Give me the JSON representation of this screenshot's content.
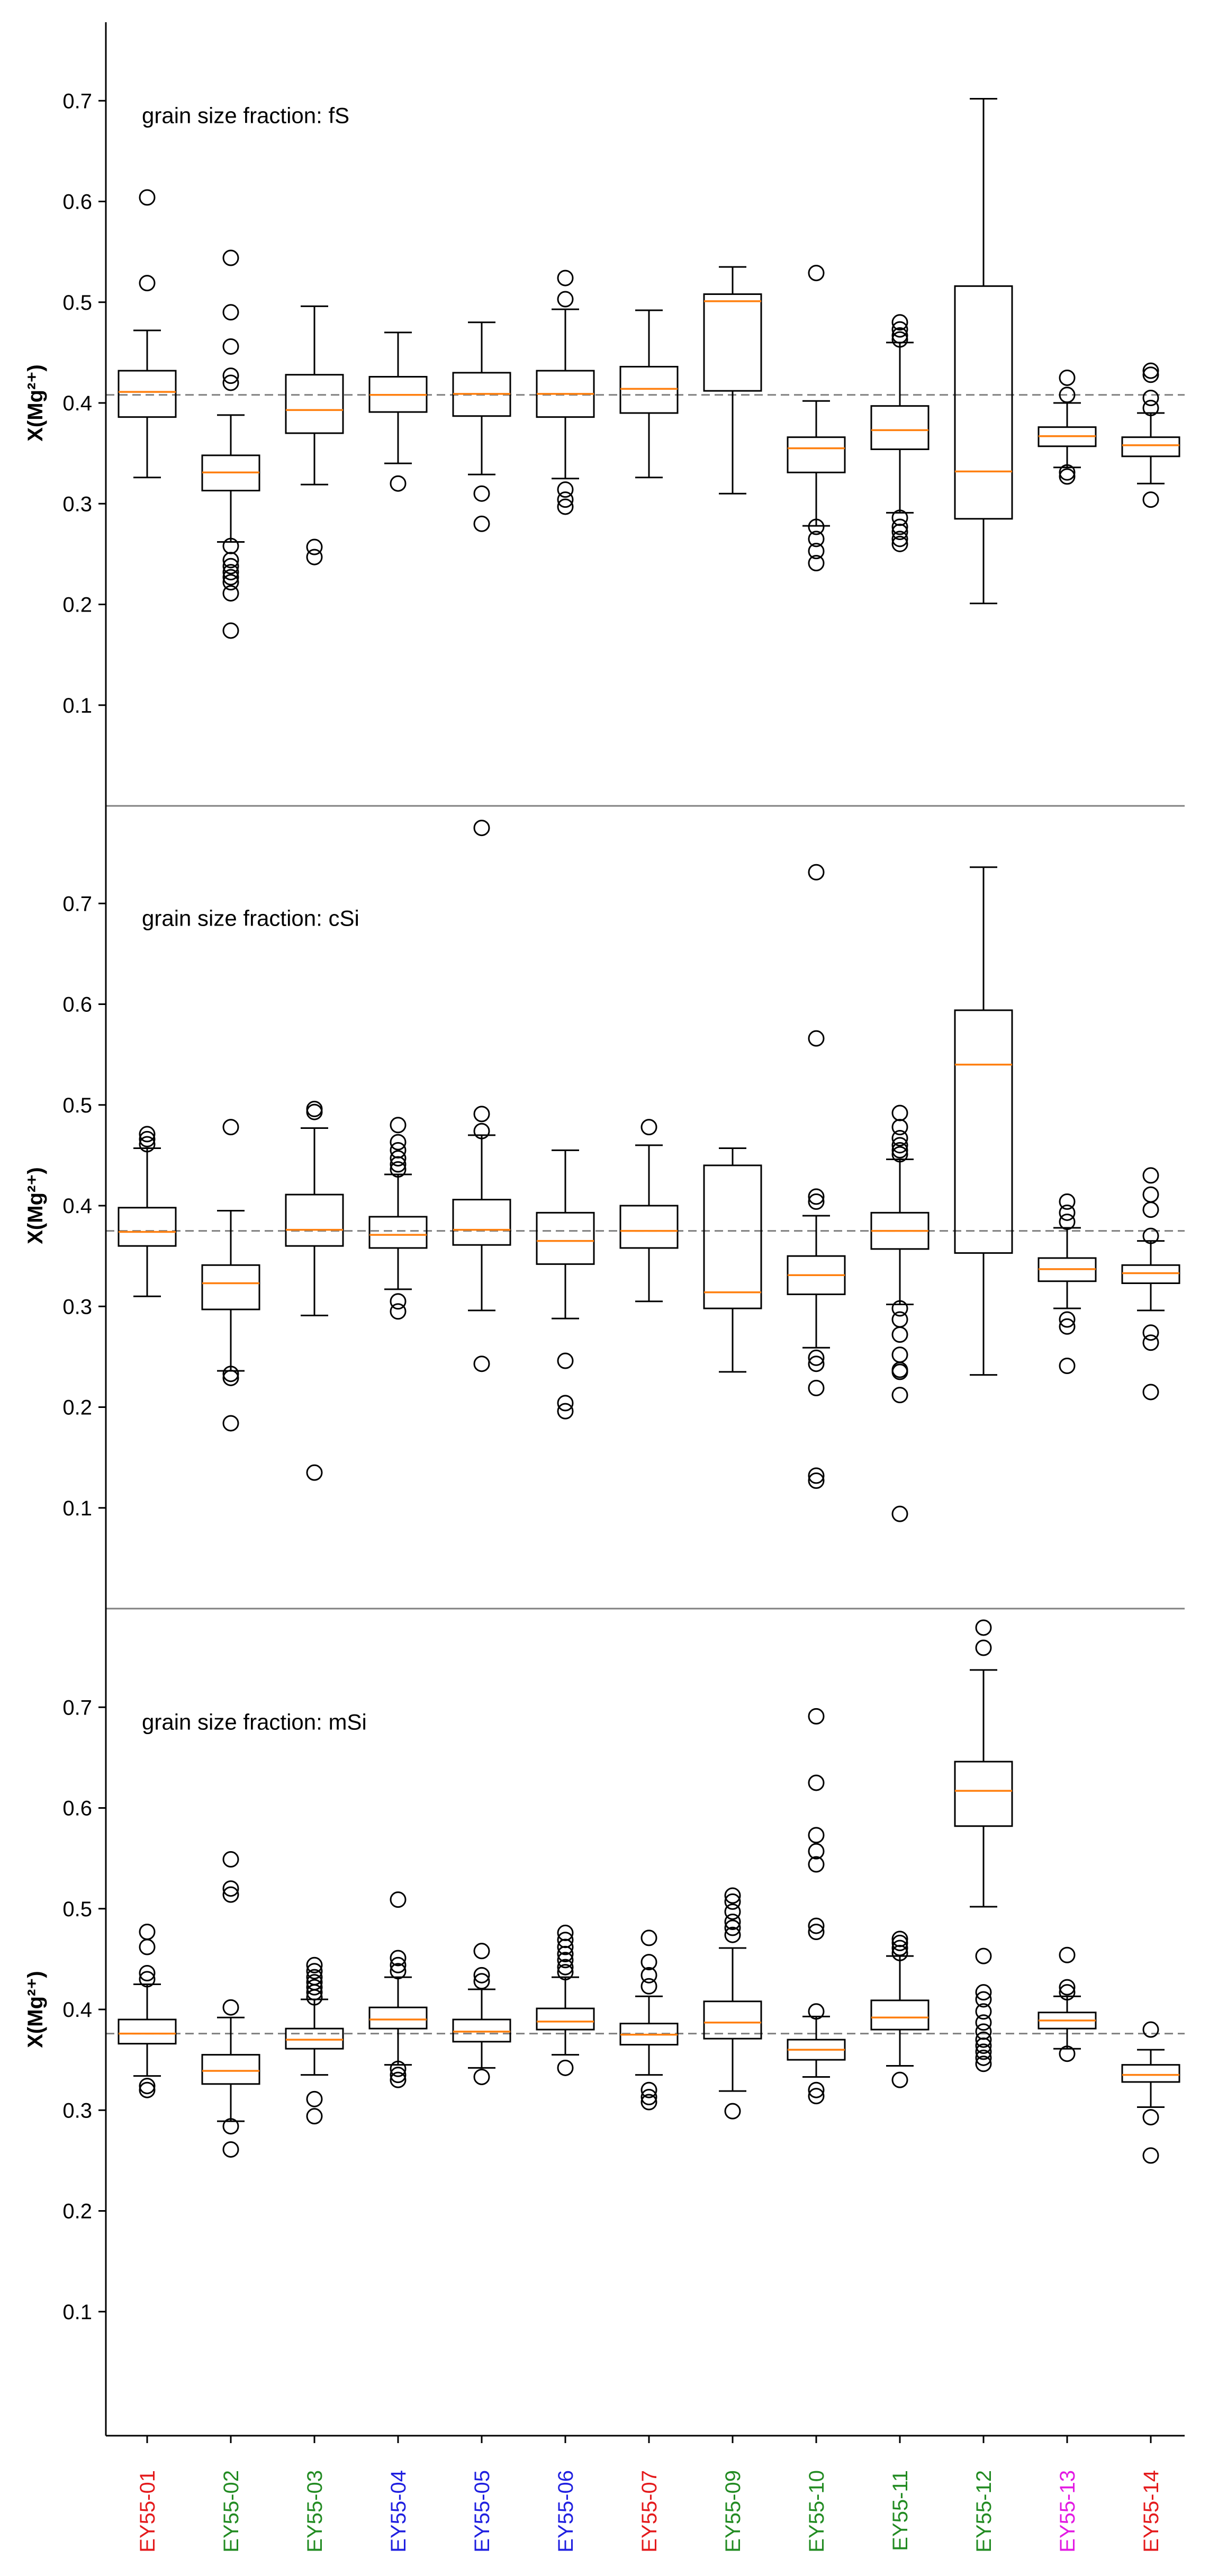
{
  "chart_data": {
    "type": "boxplot",
    "ylabel": "X(Mg²⁺)",
    "ylim": [
      0,
      0.8
    ],
    "yticks": [
      0.1,
      0.2,
      0.3,
      0.4,
      0.5,
      0.6,
      0.7
    ],
    "ytick_labels": [
      "0.1",
      "0.2",
      "0.3",
      "0.4",
      "0.5",
      "0.6",
      "0.7"
    ],
    "categories": [
      "EY55-01",
      "EY55-02",
      "EY55-03",
      "EY55-04",
      "EY55-05",
      "EY55-06",
      "EY55-07",
      "EY55-09",
      "EY55-10",
      "EY55-11",
      "EY55-12",
      "EY55-13",
      "EY55-14"
    ],
    "category_colors": [
      "#e41a1c",
      "#228b22",
      "#228b22",
      "#1f1fe0",
      "#1f1fe0",
      "#1f1fe0",
      "#e41a1c",
      "#228b22",
      "#228b22",
      "#228b22",
      "#228b22",
      "#e31ae3",
      "#e41a1c"
    ],
    "colors": {
      "median": "#ff7f0e",
      "box": "#000000",
      "reference": "#808080",
      "axis": "#000000",
      "separator": "#808080"
    },
    "panels": [
      {
        "title": "grain size fraction: fS",
        "reference_line": 0.408,
        "boxes": [
          {
            "q1": 0.386,
            "median": 0.411,
            "q3": 0.432,
            "wlo": 0.326,
            "whi": 0.472,
            "fliers": [
              0.519,
              0.604
            ]
          },
          {
            "q1": 0.313,
            "median": 0.331,
            "q3": 0.348,
            "wlo": 0.262,
            "whi": 0.388,
            "fliers": [
              0.174,
              0.211,
              0.222,
              0.227,
              0.232,
              0.238,
              0.244,
              0.258,
              0.42,
              0.427,
              0.456,
              0.49,
              0.544
            ]
          },
          {
            "q1": 0.37,
            "median": 0.393,
            "q3": 0.428,
            "wlo": 0.319,
            "whi": 0.496,
            "fliers": [
              0.247,
              0.257
            ]
          },
          {
            "q1": 0.391,
            "median": 0.408,
            "q3": 0.426,
            "wlo": 0.34,
            "whi": 0.47,
            "fliers": [
              0.32
            ]
          },
          {
            "q1": 0.387,
            "median": 0.409,
            "q3": 0.43,
            "wlo": 0.329,
            "whi": 0.48,
            "fliers": [
              0.28,
              0.31
            ]
          },
          {
            "q1": 0.386,
            "median": 0.409,
            "q3": 0.432,
            "wlo": 0.325,
            "whi": 0.493,
            "fliers": [
              0.297,
              0.304,
              0.314,
              0.503,
              0.524
            ]
          },
          {
            "q1": 0.39,
            "median": 0.414,
            "q3": 0.436,
            "wlo": 0.326,
            "whi": 0.492,
            "fliers": []
          },
          {
            "q1": 0.412,
            "median": 0.501,
            "q3": 0.508,
            "wlo": 0.31,
            "whi": 0.535,
            "fliers": []
          },
          {
            "q1": 0.331,
            "median": 0.355,
            "q3": 0.366,
            "wlo": 0.278,
            "whi": 0.402,
            "fliers": [
              0.241,
              0.253,
              0.265,
              0.277,
              0.529
            ]
          },
          {
            "q1": 0.354,
            "median": 0.373,
            "q3": 0.397,
            "wlo": 0.291,
            "whi": 0.46,
            "fliers": [
              0.26,
              0.265,
              0.272,
              0.277,
              0.286,
              0.463,
              0.467,
              0.473,
              0.48
            ]
          },
          {
            "q1": 0.285,
            "median": 0.332,
            "q3": 0.516,
            "wlo": 0.201,
            "whi": 0.702,
            "fliers": []
          },
          {
            "q1": 0.357,
            "median": 0.367,
            "q3": 0.376,
            "wlo": 0.336,
            "whi": 0.4,
            "fliers": [
              0.327,
              0.331,
              0.408,
              0.425
            ]
          },
          {
            "q1": 0.347,
            "median": 0.358,
            "q3": 0.366,
            "wlo": 0.32,
            "whi": 0.39,
            "fliers": [
              0.304,
              0.395,
              0.405,
              0.428,
              0.432
            ]
          }
        ]
      },
      {
        "title": "grain size fraction: cSi",
        "reference_line": 0.375,
        "boxes": [
          {
            "q1": 0.36,
            "median": 0.374,
            "q3": 0.398,
            "wlo": 0.31,
            "whi": 0.457,
            "fliers": [
              0.461,
              0.466,
              0.471
            ]
          },
          {
            "q1": 0.297,
            "median": 0.323,
            "q3": 0.341,
            "wlo": 0.236,
            "whi": 0.395,
            "fliers": [
              0.184,
              0.229,
              0.233,
              0.478
            ]
          },
          {
            "q1": 0.36,
            "median": 0.376,
            "q3": 0.411,
            "wlo": 0.291,
            "whi": 0.477,
            "fliers": [
              0.135,
              0.493,
              0.496
            ]
          },
          {
            "q1": 0.358,
            "median": 0.371,
            "q3": 0.389,
            "wlo": 0.317,
            "whi": 0.431,
            "fliers": [
              0.295,
              0.305,
              0.436,
              0.441,
              0.447,
              0.455,
              0.463,
              0.48
            ]
          },
          {
            "q1": 0.361,
            "median": 0.376,
            "q3": 0.406,
            "wlo": 0.296,
            "whi": 0.47,
            "fliers": [
              0.243,
              0.474,
              0.491,
              0.775
            ]
          },
          {
            "q1": 0.342,
            "median": 0.365,
            "q3": 0.393,
            "wlo": 0.288,
            "whi": 0.455,
            "fliers": [
              0.196,
              0.204,
              0.246
            ]
          },
          {
            "q1": 0.358,
            "median": 0.375,
            "q3": 0.4,
            "wlo": 0.305,
            "whi": 0.46,
            "fliers": [
              0.478
            ]
          },
          {
            "q1": 0.298,
            "median": 0.314,
            "q3": 0.44,
            "wlo": 0.235,
            "whi": 0.457,
            "fliers": []
          },
          {
            "q1": 0.312,
            "median": 0.331,
            "q3": 0.35,
            "wlo": 0.259,
            "whi": 0.39,
            "fliers": [
              0.127,
              0.132,
              0.219,
              0.243,
              0.249,
              0.404,
              0.409,
              0.566,
              0.731
            ]
          },
          {
            "q1": 0.357,
            "median": 0.375,
            "q3": 0.393,
            "wlo": 0.302,
            "whi": 0.446,
            "fliers": [
              0.094,
              0.212,
              0.235,
              0.237,
              0.252,
              0.272,
              0.287,
              0.298,
              0.451,
              0.455,
              0.46,
              0.467,
              0.478,
              0.492
            ]
          },
          {
            "q1": 0.353,
            "median": 0.54,
            "q3": 0.594,
            "wlo": 0.232,
            "whi": 0.736,
            "fliers": []
          },
          {
            "q1": 0.325,
            "median": 0.337,
            "q3": 0.348,
            "wlo": 0.298,
            "whi": 0.378,
            "fliers": [
              0.241,
              0.28,
              0.287,
              0.384,
              0.393,
              0.404
            ]
          },
          {
            "q1": 0.323,
            "median": 0.333,
            "q3": 0.341,
            "wlo": 0.296,
            "whi": 0.365,
            "fliers": [
              0.215,
              0.264,
              0.274,
              0.37,
              0.396,
              0.411,
              0.43
            ]
          }
        ]
      },
      {
        "title": "grain size fraction: mSi",
        "reference_line": 0.376,
        "boxes": [
          {
            "q1": 0.366,
            "median": 0.376,
            "q3": 0.39,
            "wlo": 0.334,
            "whi": 0.425,
            "fliers": [
              0.32,
              0.324,
              0.43,
              0.436,
              0.462,
              0.477
            ]
          },
          {
            "q1": 0.326,
            "median": 0.339,
            "q3": 0.355,
            "wlo": 0.289,
            "whi": 0.392,
            "fliers": [
              0.261,
              0.284,
              0.402,
              0.514,
              0.52,
              0.549
            ]
          },
          {
            "q1": 0.361,
            "median": 0.37,
            "q3": 0.381,
            "wlo": 0.335,
            "whi": 0.41,
            "fliers": [
              0.294,
              0.311,
              0.412,
              0.417,
              0.422,
              0.427,
              0.432,
              0.438,
              0.444
            ]
          },
          {
            "q1": 0.381,
            "median": 0.39,
            "q3": 0.402,
            "wlo": 0.345,
            "whi": 0.432,
            "fliers": [
              0.33,
              0.335,
              0.341,
              0.438,
              0.444,
              0.451,
              0.509
            ]
          },
          {
            "q1": 0.368,
            "median": 0.378,
            "q3": 0.39,
            "wlo": 0.342,
            "whi": 0.42,
            "fliers": [
              0.333,
              0.428,
              0.434,
              0.458
            ]
          },
          {
            "q1": 0.38,
            "median": 0.388,
            "q3": 0.401,
            "wlo": 0.355,
            "whi": 0.432,
            "fliers": [
              0.342,
              0.437,
              0.442,
              0.449,
              0.455,
              0.462,
              0.469,
              0.476
            ]
          },
          {
            "q1": 0.365,
            "median": 0.375,
            "q3": 0.386,
            "wlo": 0.335,
            "whi": 0.413,
            "fliers": [
              0.308,
              0.313,
              0.32,
              0.423,
              0.434,
              0.447,
              0.471
            ]
          },
          {
            "q1": 0.371,
            "median": 0.387,
            "q3": 0.408,
            "wlo": 0.319,
            "whi": 0.461,
            "fliers": [
              0.299,
              0.474,
              0.481,
              0.487,
              0.497,
              0.507,
              0.513
            ]
          },
          {
            "q1": 0.35,
            "median": 0.36,
            "q3": 0.37,
            "wlo": 0.333,
            "whi": 0.393,
            "fliers": [
              0.314,
              0.32,
              0.398,
              0.477,
              0.483,
              0.544,
              0.557,
              0.573,
              0.625,
              0.691
            ]
          },
          {
            "q1": 0.38,
            "median": 0.392,
            "q3": 0.409,
            "wlo": 0.344,
            "whi": 0.453,
            "fliers": [
              0.33,
              0.456,
              0.461,
              0.466,
              0.47
            ]
          },
          {
            "q1": 0.582,
            "median": 0.617,
            "q3": 0.646,
            "wlo": 0.502,
            "whi": 0.737,
            "fliers": [
              0.346,
              0.352,
              0.358,
              0.364,
              0.37,
              0.378,
              0.387,
              0.398,
              0.41,
              0.417,
              0.453,
              0.759,
              0.779
            ]
          },
          {
            "q1": 0.381,
            "median": 0.389,
            "q3": 0.397,
            "wlo": 0.361,
            "whi": 0.413,
            "fliers": [
              0.356,
              0.417,
              0.422,
              0.454
            ]
          },
          {
            "q1": 0.328,
            "median": 0.335,
            "q3": 0.345,
            "wlo": 0.303,
            "whi": 0.36,
            "fliers": [
              0.255,
              0.293,
              0.38
            ]
          }
        ]
      }
    ]
  }
}
